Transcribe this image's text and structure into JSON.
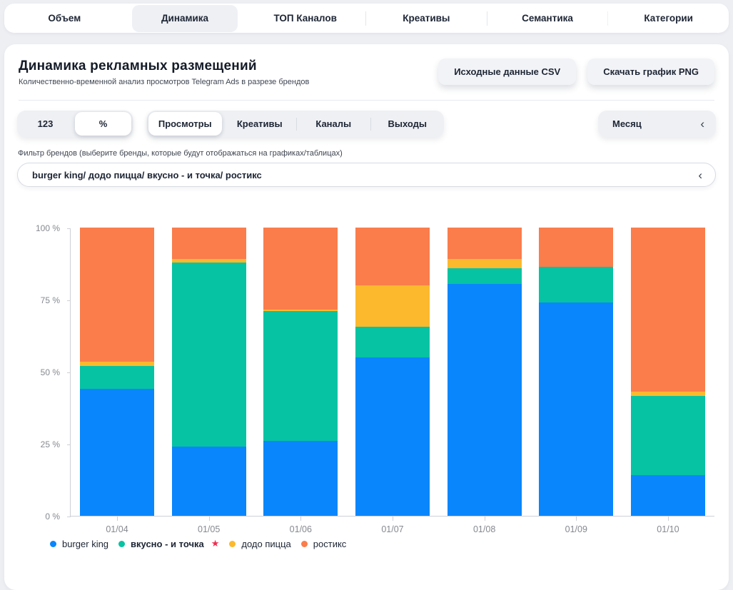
{
  "nav": {
    "items": [
      {
        "label": "Объем",
        "active": false
      },
      {
        "label": "Динамика",
        "active": true
      },
      {
        "label": "ТОП Каналов",
        "active": false
      },
      {
        "label": "Креативы",
        "active": false
      },
      {
        "label": "Семантика",
        "active": false
      },
      {
        "label": "Категории",
        "active": false
      }
    ]
  },
  "header": {
    "title": "Динамика рекламных размещений",
    "subtitle": "Количественно-временной анализ просмотров Telegram Ads в разрезе брендов",
    "csv_button": "Исходные данные CSV",
    "png_button": "Скачать график PNG"
  },
  "controls": {
    "format_toggle": {
      "options": [
        "123",
        "%"
      ],
      "selected": "%"
    },
    "view_tabs": {
      "options": [
        "Просмотры",
        "Креативы",
        "Каналы",
        "Выходы"
      ],
      "selected": "Просмотры"
    },
    "period_select": {
      "value": "Месяц",
      "chevron": "‹"
    }
  },
  "filter": {
    "label": "Фильтр брендов (выберите бренды, которые будут отображаться на графиках/таблицах)",
    "value": "burger king/ додо пицца/ вкусно - и точка/ ростикс",
    "chevron": "‹"
  },
  "chart_data": {
    "type": "bar",
    "stacked": true,
    "normalized": true,
    "unit": "%",
    "grid": false,
    "legend_position": "bottom",
    "categories": [
      "01/04",
      "01/05",
      "01/06",
      "01/07",
      "01/08",
      "01/09",
      "01/10"
    ],
    "series": [
      {
        "name": "burger king",
        "color": "#0986fc",
        "highlight": false,
        "values": [
          44,
          24,
          26,
          55,
          80.5,
          74,
          14
        ]
      },
      {
        "name": "вкусно - и точка",
        "color": "#06c3a3",
        "highlight": true,
        "values": [
          8,
          64,
          45,
          10.5,
          5.5,
          12.5,
          27.5
        ]
      },
      {
        "name": "додо пицца",
        "color": "#fcb92d",
        "highlight": false,
        "values": [
          1.5,
          1,
          0.5,
          14.5,
          3,
          0,
          1.5
        ]
      },
      {
        "name": "ростикс",
        "color": "#fa7d4b",
        "highlight": false,
        "values": [
          46.5,
          11,
          28.5,
          20,
          11,
          13.5,
          57
        ]
      }
    ],
    "y_ticks": [
      {
        "label": "100 %",
        "value": 100
      },
      {
        "label": "75 %",
        "value": 75
      },
      {
        "label": "50 %",
        "value": 50
      },
      {
        "label": "25 %",
        "value": 25
      },
      {
        "label": "0 %",
        "value": 0
      }
    ],
    "ylim": [
      0,
      100
    ],
    "highlight_marker": {
      "glyph": "★",
      "color": "#ee2d4e"
    }
  }
}
